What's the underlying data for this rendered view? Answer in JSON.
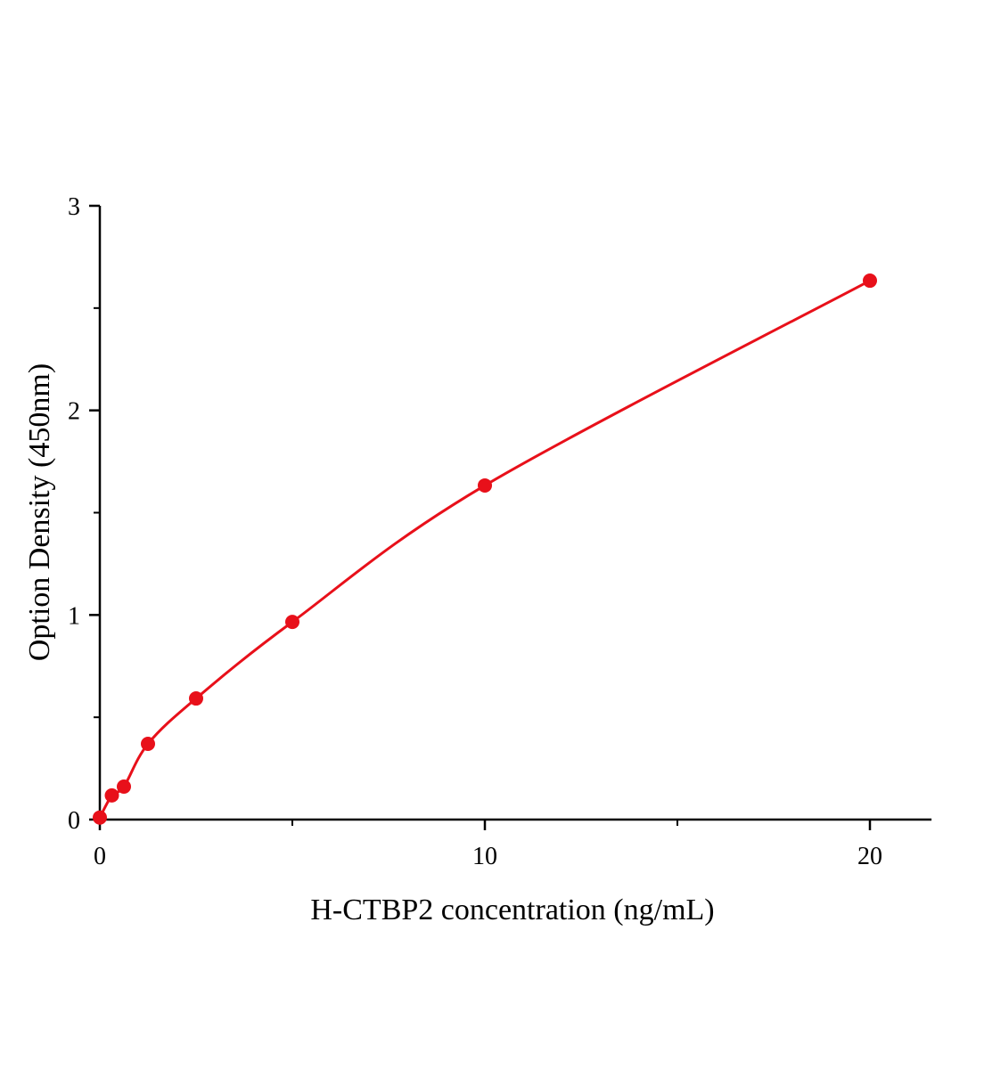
{
  "chart_data": {
    "type": "scatter",
    "title": "",
    "xlabel": "H-CTBP2 concentration (ng/mL)",
    "ylabel": "Option Density (450nm)",
    "xlim": [
      0,
      21.6
    ],
    "ylim": [
      0,
      3
    ],
    "xticks": [
      0,
      10,
      20
    ],
    "xminor": [
      5,
      15
    ],
    "yticks": [
      0,
      1,
      2,
      3
    ],
    "yminor": [
      0.5,
      1.5,
      2.5
    ],
    "grid": false,
    "legend": "none",
    "color": "#e8101a",
    "fit_line": true,
    "series": [
      {
        "x": [
          0,
          0.3125,
          0.625,
          1.25,
          2.5,
          5,
          10,
          20
        ],
        "y": [
          0.01,
          0.118,
          0.161,
          0.37,
          0.592,
          0.966,
          1.633,
          2.634
        ]
      }
    ]
  }
}
